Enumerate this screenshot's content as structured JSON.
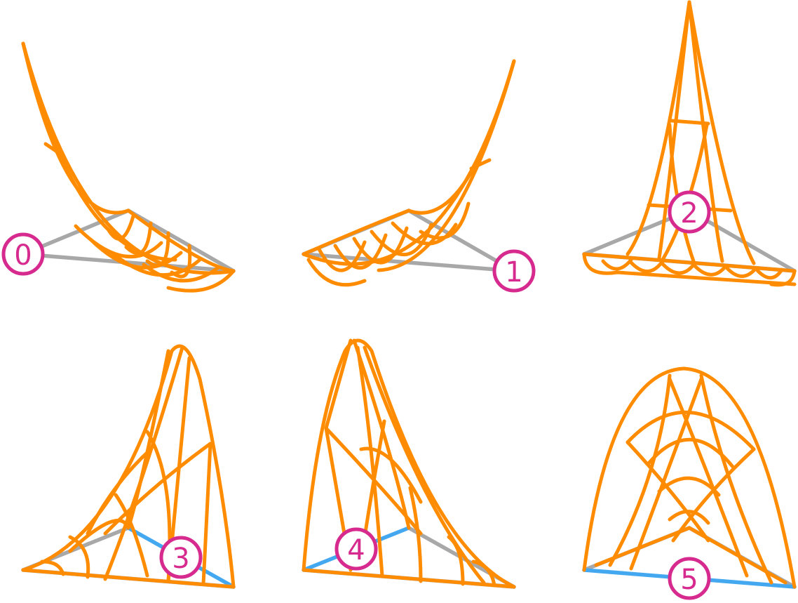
{
  "colors": {
    "surface": "#FF8C00",
    "base_edge": "#A8A8A8",
    "highlight_edge": "#44A8F0",
    "badge": "#D62A8E"
  },
  "panels": [
    {
      "label": "0",
      "highlighted_edge": "none"
    },
    {
      "label": "1",
      "highlighted_edge": "none"
    },
    {
      "label": "2",
      "highlighted_edge": "none"
    },
    {
      "label": "3",
      "highlighted_edge": "right"
    },
    {
      "label": "4",
      "highlighted_edge": "left"
    },
    {
      "label": "5",
      "highlighted_edge": "bottom"
    }
  ]
}
